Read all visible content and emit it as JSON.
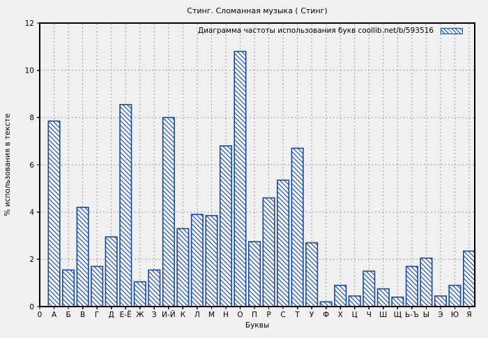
{
  "colors": {
    "bar_blue": "#164a9e",
    "background": "#f0f0f0",
    "bar_fill_bg": "#f2f2f2",
    "grid_gray": "#9a9a9a",
    "frame_black": "#000000"
  },
  "chart_data": {
    "type": "bar",
    "title": "Стинг. Сломанная музыка ( Стинг)",
    "legend": "Диаграмма частоты использования букв coollib.net/b/593516",
    "legend_position": "top-right-inside",
    "xlabel": "Буквы",
    "ylabel": "% использования в тексте",
    "origin_tick_label": "0",
    "ylim": [
      0,
      12
    ],
    "yticks": [
      0,
      2,
      4,
      6,
      8,
      10,
      12
    ],
    "grid": true,
    "bar_style": "blue outline with blue diagonal hatch fill",
    "categories": [
      "А",
      "Б",
      "В",
      "Г",
      "Д",
      "Е-Ё",
      "Ж",
      "З",
      "И-Й",
      "К",
      "Л",
      "М",
      "Н",
      "О",
      "П",
      "Р",
      "С",
      "Т",
      "У",
      "Ф",
      "Х",
      "Ц",
      "Ч",
      "Ш",
      "Щ",
      "Ь-Ъ",
      "Ы",
      "Э",
      "Ю",
      "Я"
    ],
    "values": [
      7.85,
      1.55,
      4.2,
      1.7,
      2.95,
      8.55,
      1.05,
      1.55,
      8.0,
      3.3,
      3.9,
      3.85,
      6.8,
      10.8,
      2.75,
      4.6,
      5.35,
      6.7,
      2.7,
      0.2,
      0.9,
      0.45,
      1.5,
      0.75,
      0.4,
      1.7,
      2.05,
      0.45,
      0.9,
      2.35
    ]
  }
}
